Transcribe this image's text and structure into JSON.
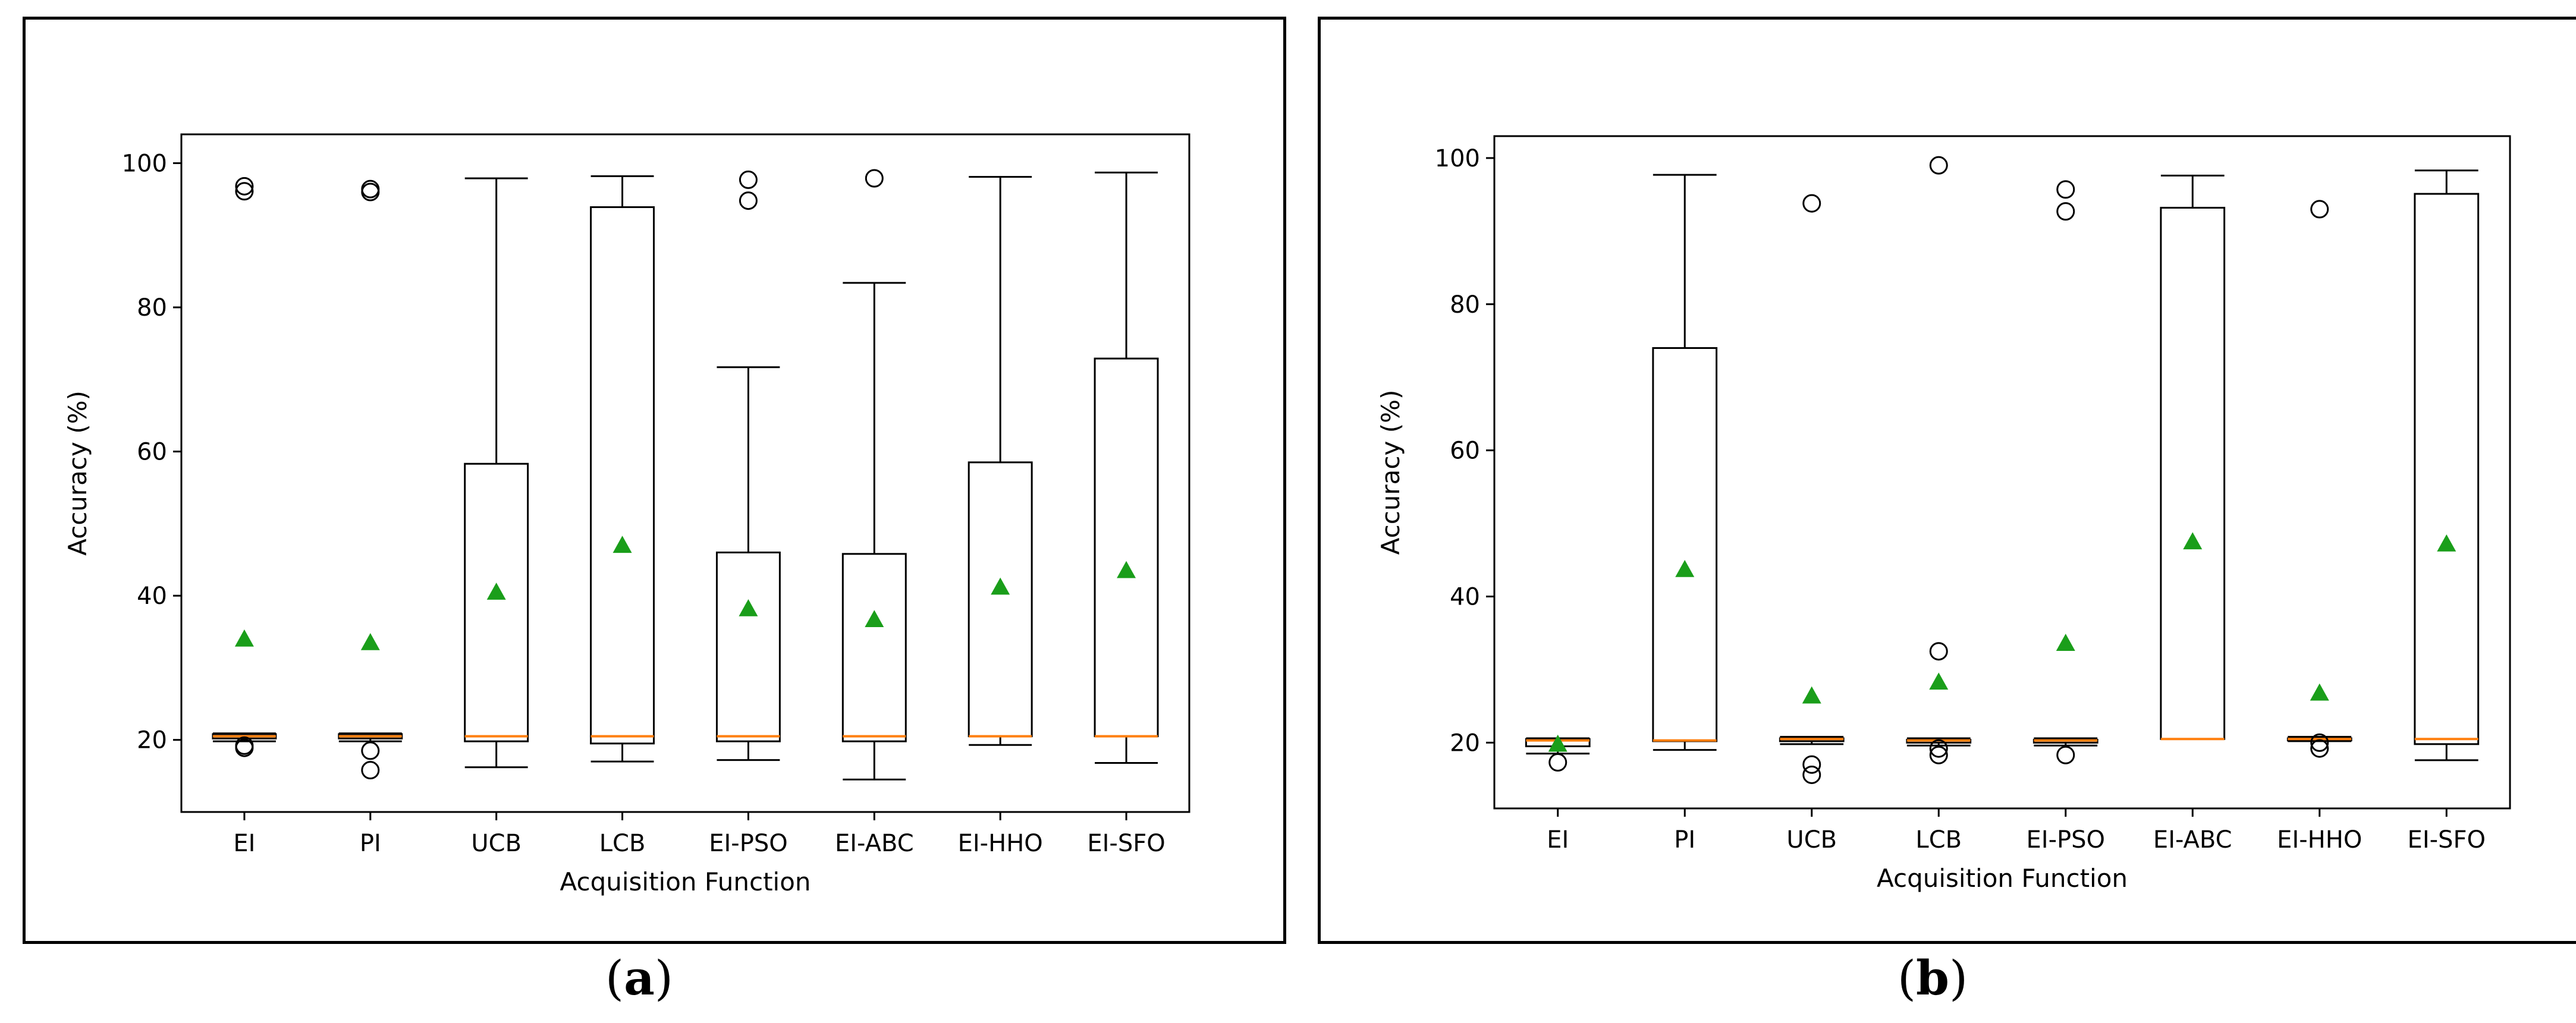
{
  "colors": {
    "box": "#000000",
    "median": "#ff7f0e",
    "mean": "#1a9e1a",
    "flier": "#000000"
  },
  "chart_data": [
    {
      "type": "boxplot",
      "panel_label": "a",
      "xlabel": "Acquisition Function",
      "ylabel": "Accuracy (%)",
      "ylim": [
        10,
        104
      ],
      "yticks": [
        20,
        40,
        60,
        80,
        100
      ],
      "categories": [
        "EI",
        "PI",
        "UCB",
        "LCB",
        "EI-PSO",
        "EI-ABC",
        "EI-HHO",
        "EI-SFO"
      ],
      "boxes": [
        {
          "whislo": 19.8,
          "q1": 20.2,
          "med": 20.5,
          "q3": 20.8,
          "whishi": 20.9,
          "mean": 34.0,
          "fliers": [
            96.8,
            96.1,
            19.2,
            18.9
          ]
        },
        {
          "whislo": 19.8,
          "q1": 20.2,
          "med": 20.5,
          "q3": 20.8,
          "whishi": 20.9,
          "mean": 33.5,
          "fliers": [
            96.4,
            96.0,
            18.5,
            15.8
          ]
        },
        {
          "whislo": 16.2,
          "q1": 19.8,
          "med": 20.5,
          "q3": 58.3,
          "whishi": 97.9,
          "mean": 40.5,
          "fliers": []
        },
        {
          "whislo": 17.0,
          "q1": 19.5,
          "med": 20.5,
          "q3": 93.9,
          "whishi": 98.2,
          "mean": 47.0,
          "fliers": []
        },
        {
          "whislo": 17.2,
          "q1": 19.8,
          "med": 20.5,
          "q3": 46.0,
          "whishi": 71.7,
          "mean": 38.2,
          "fliers": [
            97.7,
            94.8
          ]
        },
        {
          "whislo": 14.5,
          "q1": 19.8,
          "med": 20.5,
          "q3": 45.8,
          "whishi": 83.4,
          "mean": 36.7,
          "fliers": [
            97.9
          ]
        },
        {
          "whislo": 19.3,
          "q1": 20.5,
          "med": 20.5,
          "q3": 58.5,
          "whishi": 98.1,
          "mean": 41.2,
          "fliers": []
        },
        {
          "whislo": 16.8,
          "q1": 20.5,
          "med": 20.5,
          "q3": 72.9,
          "whishi": 98.7,
          "mean": 43.5,
          "fliers": []
        }
      ]
    },
    {
      "type": "boxplot",
      "panel_label": "b",
      "xlabel": "Acquisition Function",
      "ylabel": "Accuracy (%)",
      "ylim": [
        11,
        103
      ],
      "yticks": [
        20,
        40,
        60,
        80,
        100
      ],
      "categories": [
        "EI",
        "PI",
        "UCB",
        "LCB",
        "EI-PSO",
        "EI-ABC",
        "EI-HHO",
        "EI-SFO"
      ],
      "boxes": [
        {
          "whislo": 18.5,
          "q1": 19.5,
          "med": 20.3,
          "q3": 20.5,
          "whishi": 20.6,
          "mean": 19.8,
          "fliers": [
            17.3
          ]
        },
        {
          "whislo": 19.0,
          "q1": 20.2,
          "med": 20.3,
          "q3": 74.0,
          "whishi": 97.7,
          "mean": 43.7,
          "fliers": []
        },
        {
          "whislo": 19.8,
          "q1": 20.2,
          "med": 20.5,
          "q3": 20.6,
          "whishi": 20.8,
          "mean": 26.4,
          "fliers": [
            93.8,
            17.0,
            15.6
          ]
        },
        {
          "whislo": 19.6,
          "q1": 20.0,
          "med": 20.3,
          "q3": 20.4,
          "whishi": 20.6,
          "mean": 28.3,
          "fliers": [
            99.0,
            32.5,
            19.2,
            18.3
          ]
        },
        {
          "whislo": 19.6,
          "q1": 20.0,
          "med": 20.3,
          "q3": 20.4,
          "whishi": 20.6,
          "mean": 33.6,
          "fliers": [
            95.7,
            92.7,
            18.3
          ]
        },
        {
          "whislo": 20.5,
          "q1": 20.5,
          "med": 20.5,
          "q3": 93.2,
          "whishi": 97.6,
          "mean": 47.5,
          "fliers": []
        },
        {
          "whislo": 20.2,
          "q1": 20.3,
          "med": 20.5,
          "q3": 20.6,
          "whishi": 20.8,
          "mean": 26.8,
          "fliers": [
            93.0,
            20.0,
            19.2
          ]
        },
        {
          "whislo": 17.6,
          "q1": 19.8,
          "med": 20.5,
          "q3": 95.1,
          "whishi": 98.3,
          "mean": 47.2,
          "fliers": []
        }
      ]
    }
  ],
  "captions": [
    {
      "open": "(",
      "letter": "a",
      "close": ")"
    },
    {
      "open": "(",
      "letter": "b",
      "close": ")"
    }
  ]
}
